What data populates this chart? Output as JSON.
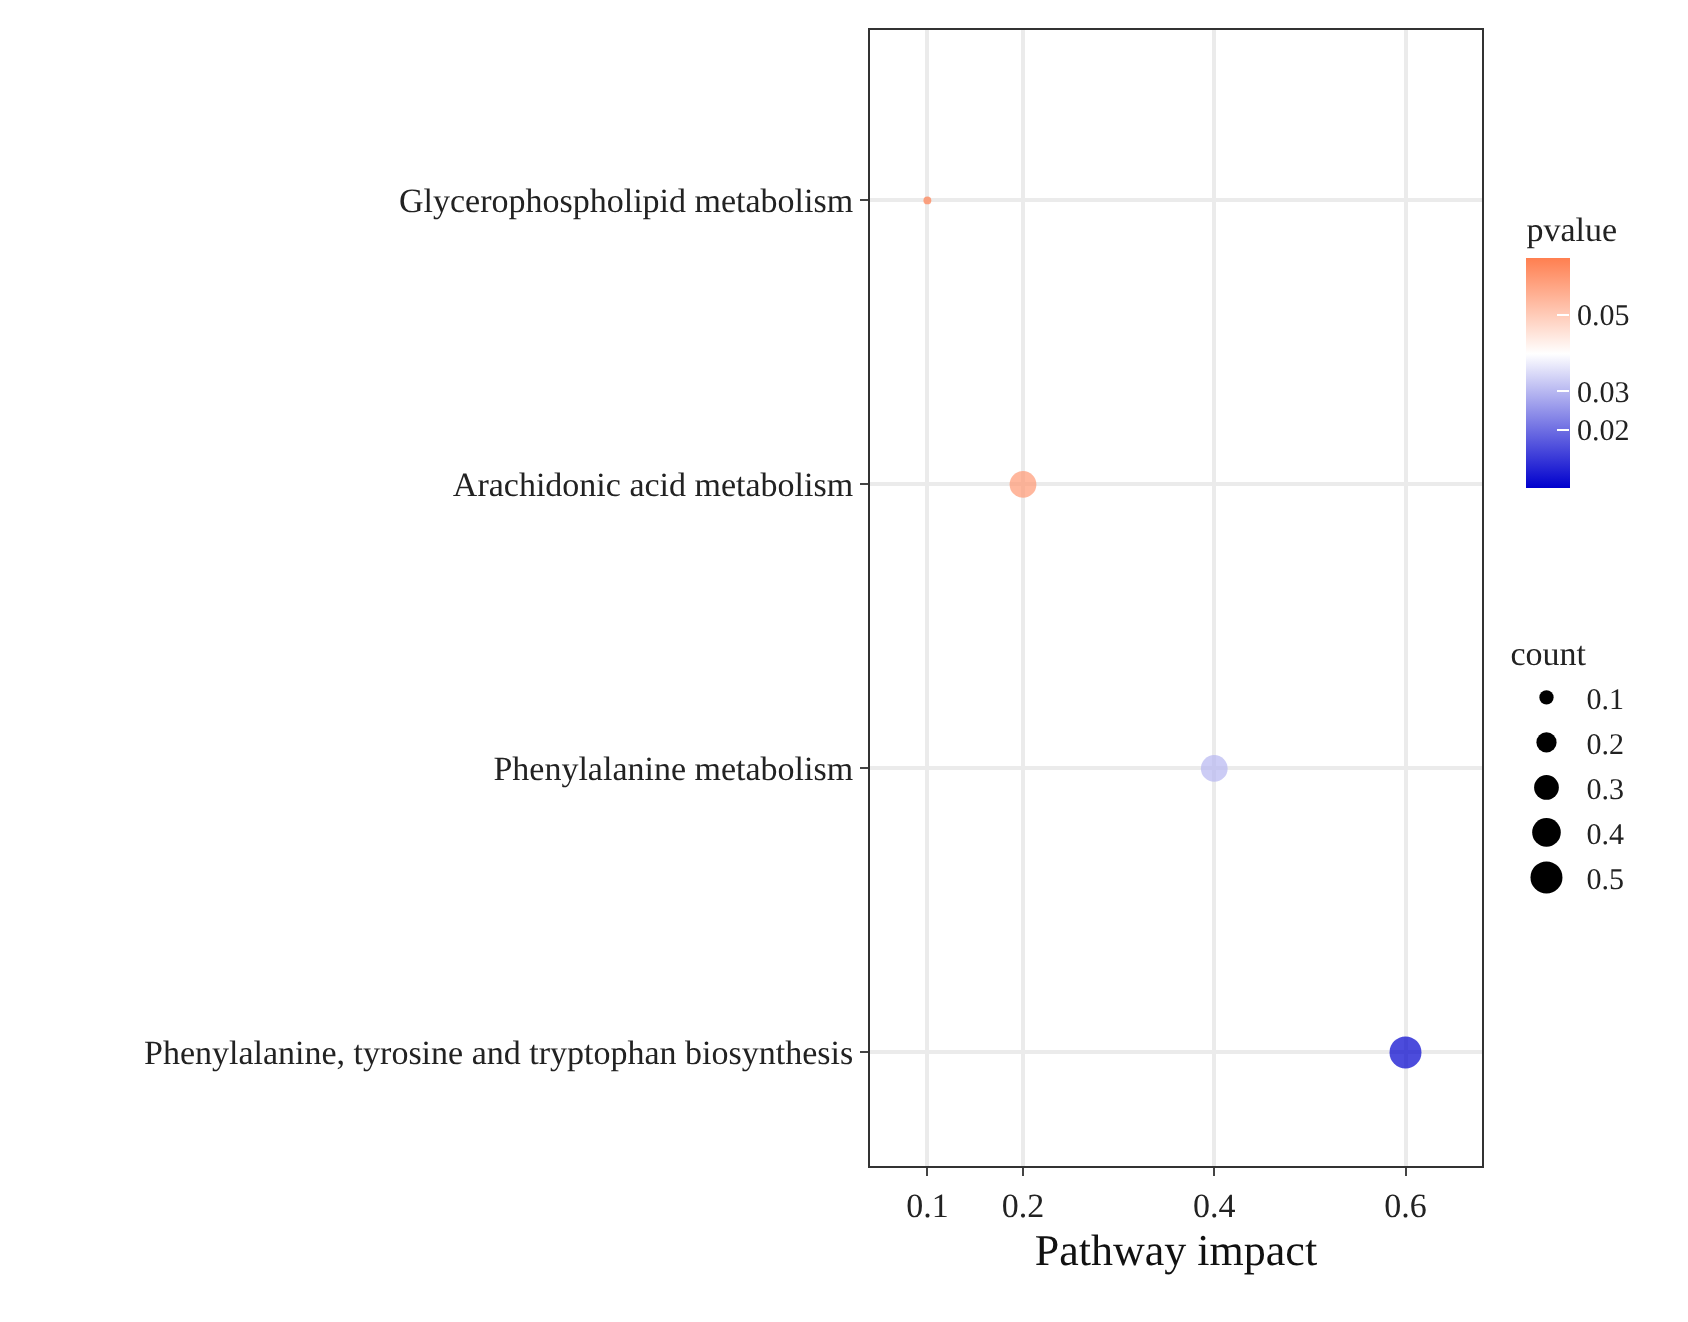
{
  "chart_data": {
    "type": "bubble",
    "orientation": "horizontal",
    "xlabel": "Pathway impact",
    "categories": [
      "Glycerophospholipid metabolism",
      "Arachidonic acid metabolism",
      "Phenylalanine metabolism",
      "Phenylalanine, tyrosine and tryptophan biosynthesis"
    ],
    "values": [
      0.1,
      0.2,
      0.4,
      0.6
    ],
    "xlim": [
      0.04,
      0.68
    ],
    "xticks": [
      0.1,
      0.2,
      0.4,
      0.6
    ],
    "sizes": [
      0.03,
      0.35,
      0.35,
      0.5
    ],
    "size_legend": [
      0.1,
      0.2,
      0.3,
      0.4,
      0.5
    ],
    "cvalues": [
      0.065,
      0.06,
      0.03,
      0.005
    ],
    "clim": [
      0.005,
      0.065
    ],
    "cticks": [
      0.02,
      0.03,
      0.05
    ],
    "clabel": "pvalue",
    "legend_title": "count",
    "grid": true
  }
}
